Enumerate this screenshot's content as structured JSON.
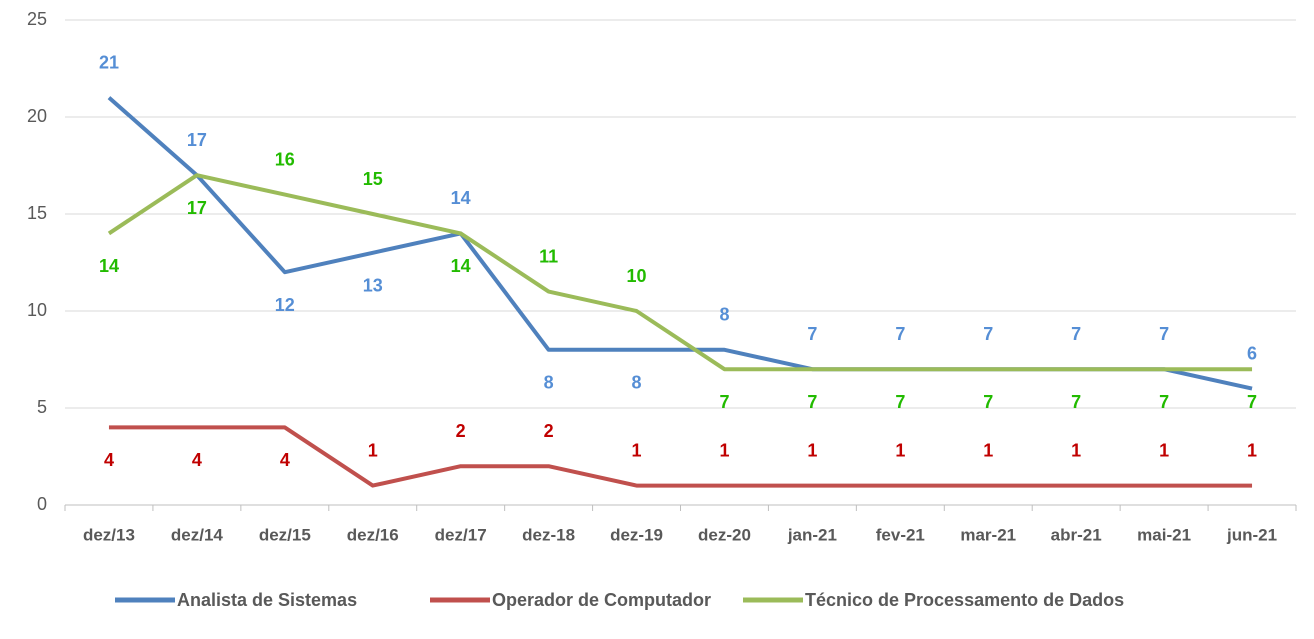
{
  "chart_data": {
    "type": "line",
    "categories": [
      "dez/13",
      "dez/14",
      "dez/15",
      "dez/16",
      "dez/17",
      "dez-18",
      "dez-19",
      "dez-20",
      "jan-21",
      "fev-21",
      "mar-21",
      "abr-21",
      "mai-21",
      "jun-21"
    ],
    "series": [
      {
        "name": "Analista de Sistemas",
        "color": "#4f81bd",
        "label_color": "#558ed5",
        "values": [
          21,
          17,
          12,
          13,
          14,
          8,
          8,
          8,
          7,
          7,
          7,
          7,
          7,
          6
        ]
      },
      {
        "name": "Operador de Computador",
        "color": "#c0504d",
        "label_color": "#c00000",
        "values": [
          4,
          4,
          4,
          1,
          2,
          2,
          1,
          1,
          1,
          1,
          1,
          1,
          1,
          1
        ]
      },
      {
        "name": "Técnico de Processamento de Dados",
        "color": "#9bbb59",
        "label_color": "#22bb00",
        "values": [
          14,
          17,
          16,
          15,
          14,
          11,
          10,
          7,
          7,
          7,
          7,
          7,
          7,
          7
        ]
      }
    ],
    "ylim": [
      0,
      25
    ],
    "yticks": [
      0,
      5,
      10,
      15,
      20,
      25
    ],
    "grid": true,
    "legend": "bottom"
  }
}
